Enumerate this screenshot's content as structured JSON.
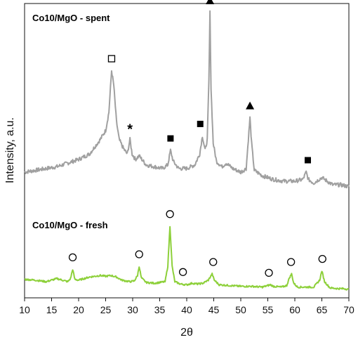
{
  "chart_data": {
    "type": "line",
    "xlabel": "2θ",
    "ylabel": "Intensity, a.u.",
    "xlim": [
      10,
      70
    ],
    "x_ticks": [
      "10",
      "15",
      "20",
      "25",
      "30",
      "35",
      "40",
      "45",
      "50",
      "55",
      "60",
      "65",
      "70"
    ],
    "grid": false,
    "legend": "none",
    "series": [
      {
        "label": "Co10/MgO - spent",
        "color": "#a0a0a0",
        "points": [
          [
            10,
            0.12
          ],
          [
            12,
            0.13
          ],
          [
            14,
            0.14
          ],
          [
            16,
            0.15
          ],
          [
            18,
            0.17
          ],
          [
            20,
            0.19
          ],
          [
            22,
            0.22
          ],
          [
            23,
            0.26
          ],
          [
            24,
            0.3
          ],
          [
            25,
            0.35
          ],
          [
            25.6,
            0.45
          ],
          [
            26.1,
            0.68
          ],
          [
            26.5,
            0.6
          ],
          [
            27,
            0.4
          ],
          [
            27.5,
            0.3
          ],
          [
            28.3,
            0.25
          ],
          [
            29.0,
            0.22
          ],
          [
            29.5,
            0.3
          ],
          [
            29.9,
            0.22
          ],
          [
            30.5,
            0.19
          ],
          [
            31.2,
            0.21
          ],
          [
            31.7,
            0.19
          ],
          [
            32.5,
            0.16
          ],
          [
            34,
            0.15
          ],
          [
            35.5,
            0.14
          ],
          [
            36.5,
            0.16
          ],
          [
            37.0,
            0.24
          ],
          [
            37.5,
            0.18
          ],
          [
            38.5,
            0.14
          ],
          [
            40,
            0.14
          ],
          [
            41.5,
            0.16
          ],
          [
            42.4,
            0.22
          ],
          [
            42.9,
            0.32
          ],
          [
            43.4,
            0.24
          ],
          [
            43.8,
            0.3
          ],
          [
            44.1,
            0.62
          ],
          [
            44.3,
            1.0
          ],
          [
            44.5,
            0.58
          ],
          [
            44.9,
            0.28
          ],
          [
            45.5,
            0.18
          ],
          [
            46.5,
            0.15
          ],
          [
            47.3,
            0.17
          ],
          [
            48.5,
            0.14
          ],
          [
            50,
            0.12
          ],
          [
            51.0,
            0.14
          ],
          [
            51.4,
            0.3
          ],
          [
            51.7,
            0.42
          ],
          [
            52.0,
            0.28
          ],
          [
            52.5,
            0.13
          ],
          [
            54,
            0.1
          ],
          [
            56,
            0.08
          ],
          [
            58,
            0.07
          ],
          [
            60,
            0.07
          ],
          [
            61.5,
            0.08
          ],
          [
            62.1,
            0.12
          ],
          [
            62.5,
            0.08
          ],
          [
            63.5,
            0.06
          ],
          [
            65,
            0.09
          ],
          [
            65.5,
            0.08
          ],
          [
            67,
            0.05
          ],
          [
            68.5,
            0.05
          ],
          [
            70,
            0.04
          ]
        ],
        "markers": [
          {
            "symbol": "open-square",
            "x": 26.1
          },
          {
            "symbol": "asterisk",
            "x": 29.5,
            "text": "*"
          },
          {
            "symbol": "filled-square",
            "x": 37.0
          },
          {
            "symbol": "filled-square",
            "x": 42.5
          },
          {
            "symbol": "filled-triangle",
            "x": 44.3
          },
          {
            "symbol": "filled-triangle",
            "x": 51.7
          },
          {
            "symbol": "filled-square",
            "x": 62.4
          }
        ]
      },
      {
        "label": "Co10/MgO - fresh",
        "color": "#8dd03a",
        "points": [
          [
            10,
            0.13
          ],
          [
            12,
            0.12
          ],
          [
            14,
            0.1
          ],
          [
            15,
            0.12
          ],
          [
            16,
            0.14
          ],
          [
            17,
            0.12
          ],
          [
            18,
            0.1
          ],
          [
            18.5,
            0.14
          ],
          [
            18.9,
            0.26
          ],
          [
            19.3,
            0.13
          ],
          [
            20,
            0.12
          ],
          [
            21,
            0.14
          ],
          [
            22,
            0.16
          ],
          [
            23,
            0.17
          ],
          [
            24,
            0.18
          ],
          [
            25,
            0.17
          ],
          [
            26,
            0.18
          ],
          [
            27,
            0.16
          ],
          [
            28,
            0.12
          ],
          [
            28.7,
            0.11
          ],
          [
            29.5,
            0.1
          ],
          [
            30.3,
            0.11
          ],
          [
            30.9,
            0.18
          ],
          [
            31.2,
            0.3
          ],
          [
            31.6,
            0.15
          ],
          [
            32.5,
            0.09
          ],
          [
            34,
            0.08
          ],
          [
            35,
            0.09
          ],
          [
            36,
            0.1
          ],
          [
            36.5,
            0.3
          ],
          [
            36.9,
            0.82
          ],
          [
            37.3,
            0.3
          ],
          [
            37.8,
            0.1
          ],
          [
            38.8,
            0.07
          ],
          [
            40,
            0.06
          ],
          [
            41,
            0.08
          ],
          [
            42,
            0.07
          ],
          [
            43,
            0.08
          ],
          [
            44,
            0.12
          ],
          [
            44.7,
            0.2
          ],
          [
            45.1,
            0.12
          ],
          [
            46,
            0.06
          ],
          [
            48,
            0.05
          ],
          [
            50,
            0.04
          ],
          [
            52,
            0.04
          ],
          [
            54,
            0.03
          ],
          [
            55.5,
            0.06
          ],
          [
            56,
            0.04
          ],
          [
            57.5,
            0.03
          ],
          [
            58.5,
            0.05
          ],
          [
            59.0,
            0.15
          ],
          [
            59.4,
            0.2
          ],
          [
            59.8,
            0.08
          ],
          [
            60.5,
            0.03
          ],
          [
            62,
            0.03
          ],
          [
            63.5,
            0.03
          ],
          [
            64.6,
            0.12
          ],
          [
            65.0,
            0.24
          ],
          [
            65.5,
            0.1
          ],
          [
            66.5,
            0.02
          ],
          [
            68,
            0.01
          ],
          [
            69,
            0.01
          ],
          [
            70,
            0.0
          ]
        ],
        "markers": [
          {
            "symbol": "open-circle",
            "x": 18.9
          },
          {
            "symbol": "open-circle",
            "x": 31.2
          },
          {
            "symbol": "open-circle",
            "x": 36.9
          },
          {
            "symbol": "open-circle",
            "x": 39.3
          },
          {
            "symbol": "open-circle",
            "x": 44.9
          },
          {
            "symbol": "open-circle",
            "x": 55.2
          },
          {
            "symbol": "open-circle",
            "x": 59.3
          },
          {
            "symbol": "open-circle",
            "x": 65.1
          }
        ]
      }
    ]
  }
}
